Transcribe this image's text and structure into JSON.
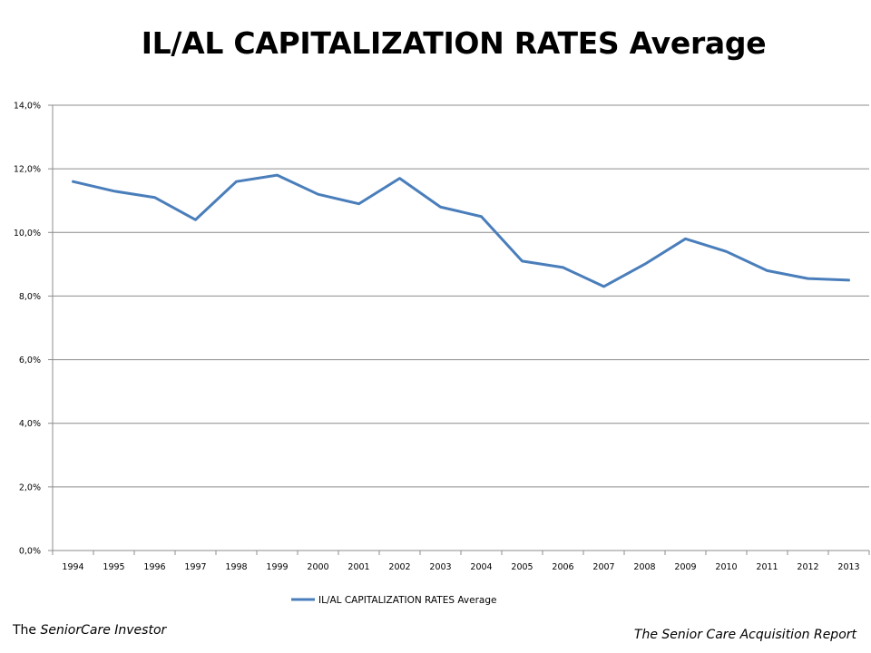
{
  "footer": {
    "left_prefix": "The ",
    "left_italic": "SeniorCare Investor",
    "right": "The Senior Care Acquisition Report"
  },
  "chart_data": {
    "type": "line",
    "title": "IL/AL CAPITALIZATION RATES Average",
    "xlabel": "",
    "ylabel": "",
    "categories": [
      "1994",
      "1995",
      "1996",
      "1997",
      "1998",
      "1999",
      "2000",
      "2001",
      "2002",
      "2003",
      "2004",
      "2005",
      "2006",
      "2007",
      "2008",
      "2009",
      "2010",
      "2011",
      "2012",
      "2013"
    ],
    "series": [
      {
        "name": "IL/AL CAPITALIZATION RATES Average",
        "values": [
          11.6,
          11.3,
          11.1,
          10.4,
          11.6,
          11.8,
          11.2,
          10.9,
          11.7,
          10.8,
          10.5,
          9.1,
          8.9,
          8.3,
          9.0,
          9.8,
          9.4,
          8.8,
          8.55,
          8.5
        ]
      }
    ],
    "ylim": [
      0,
      14
    ],
    "yticks": [
      0,
      2,
      4,
      6,
      8,
      10,
      12,
      14
    ],
    "ytick_labels": [
      "0,0%",
      "2,0%",
      "4,0%",
      "6,0%",
      "8,0%",
      "10,0%",
      "12,0%",
      "14,0%"
    ],
    "grid": "horizontal",
    "legend": "bottom",
    "line_color": "#4a7ebb"
  }
}
